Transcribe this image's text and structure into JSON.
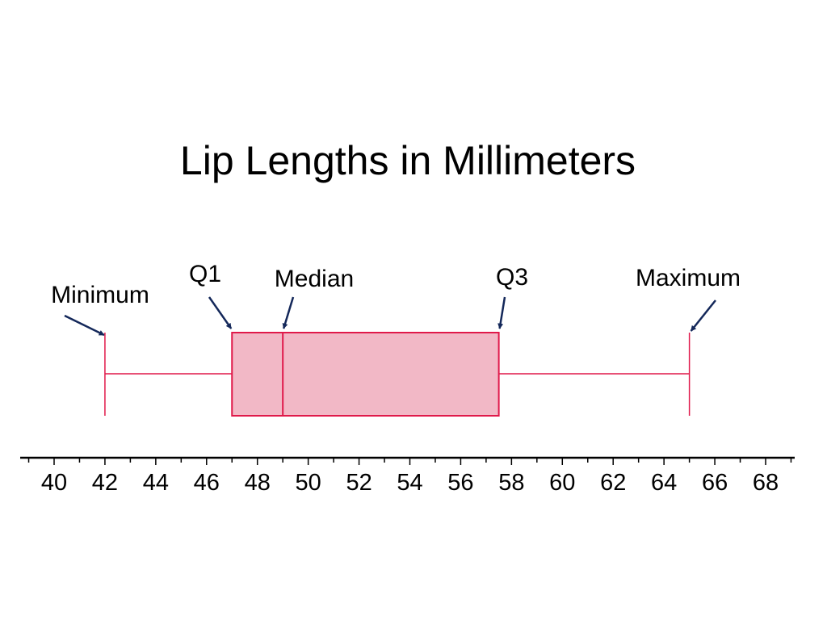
{
  "chart_data": {
    "type": "box",
    "title": "Lip Lengths in Millimeters",
    "stats": {
      "min": 42,
      "q1": 47,
      "median": 49,
      "q3": 57.5,
      "max": 65
    },
    "annotations": {
      "min": "Minimum",
      "q1": "Q1",
      "median": "Median",
      "q3": "Q3",
      "max": "Maximum"
    },
    "xlim": [
      39,
      69
    ],
    "major_ticks": [
      40,
      42,
      44,
      46,
      48,
      50,
      52,
      54,
      56,
      58,
      60,
      62,
      64,
      66,
      68
    ],
    "tick_labels": [
      "40",
      "42",
      "44",
      "46",
      "48",
      "50",
      "52",
      "54",
      "56",
      "58",
      "60",
      "62",
      "64",
      "66",
      "68"
    ],
    "minor_tick_step": 1,
    "grid": false,
    "colors": {
      "box_fill": "#f2b8c6",
      "box_stroke": "#e0194a",
      "arrow": "#14285a",
      "axis": "#000000"
    }
  }
}
